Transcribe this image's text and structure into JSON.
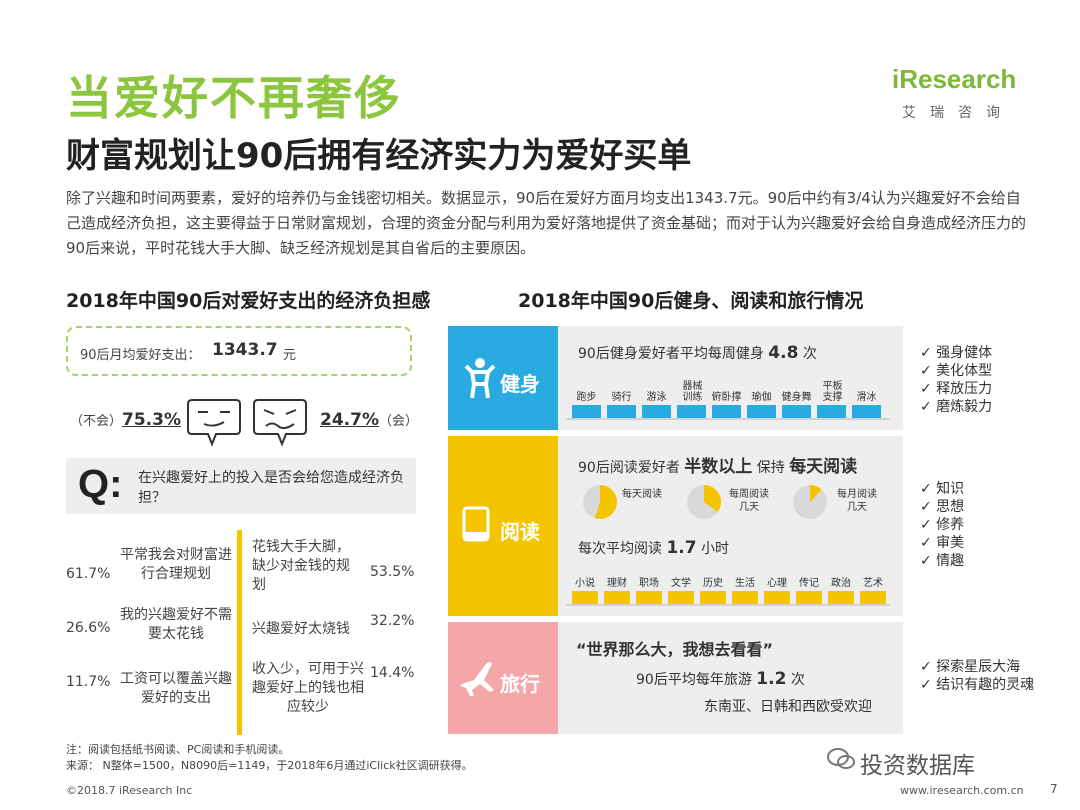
{
  "header": {
    "title": "当爱好不再奢侈",
    "subtitle": "财富规划让90后拥有经济实力为爱好买单",
    "logo_text": "iResearch",
    "logo_sub": "艾瑞咨询",
    "intro": "除了兴趣和时间两要素，爱好的培养仍与金钱密切相关。数据显示，90后在爱好方面月均支出1343.7元。90后中约有3/4认为兴趣爱好不会给自己造成经济负担，这主要得益于日常财富规划，合理的资金分配与利用为爱好落地提供了资金基础；而对于认为兴趣爱好会给自身造成经济压力的90后来说，平时花钱大手大脚、缺乏经济规划是其自省后的主要原因。"
  },
  "left": {
    "section_title": "2018年中国90后对爱好支出的经济负担感",
    "spend_label": "90后月均爱好支出：",
    "spend_value": "1343.7",
    "spend_unit": "元",
    "no_label": "（不会）",
    "no_value": "75.3%",
    "yes_value": "24.7%",
    "yes_label": "（会）",
    "q_letter": "Q:",
    "question": "在兴趣爱好上的投入是否会给您造成经济负担？",
    "reasons_no": [
      {
        "pct": "61.7%",
        "text": "平常我会对财富进行合理规划"
      },
      {
        "pct": "26.6%",
        "text": "我的兴趣爱好不需要太花钱"
      },
      {
        "pct": "11.7%",
        "text": "工资可以覆盖兴趣爱好的支出"
      }
    ],
    "reasons_yes": [
      {
        "pct": "53.5%",
        "text": "花钱大手大脚，缺少对金钱的规划"
      },
      {
        "pct": "32.2%",
        "text": "兴趣爱好太烧钱"
      },
      {
        "pct": "14.4%",
        "text": "收入少，可用于兴趣爱好上的钱也相应较少"
      }
    ]
  },
  "right": {
    "section_title": "2018年中国90后健身、阅读和旅行情况",
    "fitness": {
      "label": "健身",
      "color": "#29abe2",
      "stat_prefix": "90后健身爱好者平均每周健身",
      "stat_value": "4.8",
      "stat_unit": "次",
      "activities": [
        "跑步",
        "骑行",
        "游泳",
        "器械训练",
        "俯卧撑",
        "瑜伽",
        "健身舞",
        "平板支撑",
        "滑冰"
      ],
      "benefits": [
        "✓ 强身健体",
        "✓ 美化体型",
        "✓ 释放压力",
        "✓ 磨炼毅力"
      ]
    },
    "reading": {
      "label": "阅读",
      "color": "#f5c400",
      "stat_prefix": "90后阅读爱好者",
      "stat_mid1": "半数以上",
      "stat_mid2": "保持",
      "stat_end": "每天阅读",
      "pies": [
        "每天阅读",
        "每周阅读几天",
        "每月阅读几天"
      ],
      "avg_prefix": "每次平均阅读",
      "avg_value": "1.7",
      "avg_unit": "小时",
      "genres": [
        "小说",
        "理财",
        "职场",
        "文学",
        "历史",
        "生活",
        "心理",
        "传记",
        "政治",
        "艺术"
      ],
      "benefits": [
        "✓ 知识",
        "✓ 思想",
        "✓ 修养",
        "✓ 审美",
        "✓ 情趣"
      ]
    },
    "travel": {
      "label": "旅行",
      "color": "#f4a6a8",
      "quote": "“世界那么大，我想去看看”",
      "stat_prefix": "90后平均每年旅游",
      "stat_value": "1.2",
      "stat_unit": "次",
      "dest": "东南亚、日韩和西欧受欢迎",
      "benefits": [
        "✓ 探索星辰大海",
        "✓ 结识有趣的灵魂"
      ]
    }
  },
  "footer": {
    "note": "注：阅读包括纸书阅读、PC阅读和手机阅读。",
    "source": "来源： N整体=1500，N8090后=1149，于2018年6月通过iClick社区调研获得。",
    "copyright": "©2018.7 iResearch Inc",
    "website": "www.iresearch.com.cn",
    "page": "7",
    "watermark": "投资数据库"
  },
  "chart_data": {
    "type": "table",
    "title": "2018年中国90后对爱好支出的经济负担感",
    "question": "在兴趣爱好上的投入是否会给您造成经济负担？",
    "monthly_spend_yuan": 1343.7,
    "answers": [
      {
        "label": "不会",
        "percent": 75.3
      },
      {
        "label": "会",
        "percent": 24.7
      }
    ],
    "reasons_no": [
      {
        "label": "平常我会对财富进行合理规划",
        "percent": 61.7
      },
      {
        "label": "我的兴趣爱好不需要太花钱",
        "percent": 26.6
      },
      {
        "label": "工资可以覆盖兴趣爱好的支出",
        "percent": 11.7
      }
    ],
    "reasons_yes": [
      {
        "label": "花钱大手大脚，缺少对金钱的规划",
        "percent": 53.5
      },
      {
        "label": "兴趣爱好太烧钱",
        "percent": 32.2
      },
      {
        "label": "收入少，可用于兴趣爱好上的钱也相应较少",
        "percent": 14.4
      }
    ],
    "fitness_per_week": 4.8,
    "reading_hours_per_session": 1.7,
    "travel_per_year": 1.2,
    "reading_frequency_share": [
      {
        "label": "每天阅读",
        "value": 0.55
      },
      {
        "label": "每周阅读几天",
        "value": 0.35
      },
      {
        "label": "每月阅读几天",
        "value": 0.12
      }
    ]
  }
}
